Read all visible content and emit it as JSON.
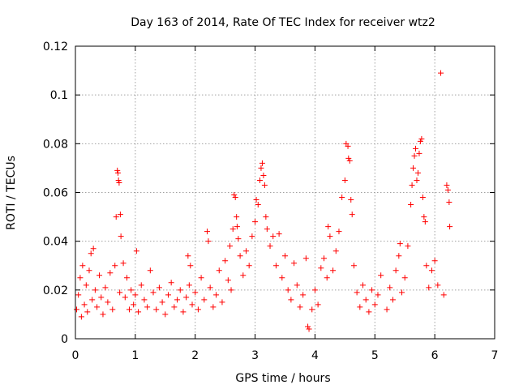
{
  "chart_data": {
    "type": "scatter",
    "title": "Day 163 of 2014, Rate Of TEC Index for receiver wtz2",
    "xlabel": "GPS time / hours",
    "ylabel": "ROTI / TECUs",
    "xlim": [
      0,
      7
    ],
    "ylim": [
      0,
      0.12
    ],
    "xticks": [
      0,
      1,
      2,
      3,
      4,
      5,
      6,
      7
    ],
    "yticks": [
      0,
      0.02,
      0.04,
      0.06,
      0.08,
      0.1,
      0.12
    ],
    "xtick_labels": [
      "0",
      "1",
      "2",
      "3",
      "4",
      "5",
      "6",
      "7"
    ],
    "ytick_labels": [
      "0",
      "0.02",
      "0.04",
      "0.06",
      "0.08",
      "0.1",
      "0.12"
    ],
    "grid": true,
    "marker": "+",
    "color": "#ff0000",
    "series": [
      {
        "name": "ROTI",
        "points": [
          [
            0.02,
            0.012
          ],
          [
            0.05,
            0.018
          ],
          [
            0.08,
            0.025
          ],
          [
            0.1,
            0.009
          ],
          [
            0.12,
            0.03
          ],
          [
            0.15,
            0.014
          ],
          [
            0.18,
            0.022
          ],
          [
            0.2,
            0.011
          ],
          [
            0.23,
            0.028
          ],
          [
            0.26,
            0.035
          ],
          [
            0.28,
            0.016
          ],
          [
            0.3,
            0.037
          ],
          [
            0.33,
            0.02
          ],
          [
            0.36,
            0.013
          ],
          [
            0.4,
            0.026
          ],
          [
            0.43,
            0.017
          ],
          [
            0.46,
            0.01
          ],
          [
            0.5,
            0.021
          ],
          [
            0.54,
            0.015
          ],
          [
            0.58,
            0.027
          ],
          [
            0.62,
            0.012
          ],
          [
            0.66,
            0.03
          ],
          [
            0.7,
            0.069
          ],
          [
            0.71,
            0.068
          ],
          [
            0.72,
            0.065
          ],
          [
            0.73,
            0.064
          ],
          [
            0.74,
            0.019
          ],
          [
            0.68,
            0.05
          ],
          [
            0.75,
            0.051
          ],
          [
            0.76,
            0.042
          ],
          [
            0.8,
            0.031
          ],
          [
            0.83,
            0.017
          ],
          [
            0.86,
            0.025
          ],
          [
            0.9,
            0.012
          ],
          [
            0.93,
            0.02
          ],
          [
            0.97,
            0.014
          ],
          [
            1.0,
            0.018
          ],
          [
            1.02,
            0.036
          ],
          [
            1.05,
            0.011
          ],
          [
            1.1,
            0.022
          ],
          [
            1.15,
            0.016
          ],
          [
            1.2,
            0.013
          ],
          [
            1.25,
            0.028
          ],
          [
            1.3,
            0.019
          ],
          [
            1.35,
            0.012
          ],
          [
            1.4,
            0.021
          ],
          [
            1.45,
            0.015
          ],
          [
            1.5,
            0.01
          ],
          [
            1.55,
            0.018
          ],
          [
            1.6,
            0.023
          ],
          [
            1.65,
            0.013
          ],
          [
            1.7,
            0.016
          ],
          [
            1.75,
            0.02
          ],
          [
            1.8,
            0.011
          ],
          [
            1.85,
            0.017
          ],
          [
            1.9,
            0.022
          ],
          [
            1.95,
            0.014
          ],
          [
            1.88,
            0.034
          ],
          [
            1.92,
            0.03
          ],
          [
            2.0,
            0.019
          ],
          [
            2.05,
            0.012
          ],
          [
            2.1,
            0.025
          ],
          [
            2.15,
            0.016
          ],
          [
            2.2,
            0.044
          ],
          [
            2.22,
            0.04
          ],
          [
            2.25,
            0.021
          ],
          [
            2.3,
            0.013
          ],
          [
            2.35,
            0.018
          ],
          [
            2.4,
            0.028
          ],
          [
            2.45,
            0.015
          ],
          [
            2.5,
            0.032
          ],
          [
            2.55,
            0.024
          ],
          [
            2.58,
            0.038
          ],
          [
            2.6,
            0.02
          ],
          [
            2.63,
            0.045
          ],
          [
            2.65,
            0.059
          ],
          [
            2.67,
            0.058
          ],
          [
            2.69,
            0.05
          ],
          [
            2.7,
            0.046
          ],
          [
            2.72,
            0.041
          ],
          [
            2.75,
            0.034
          ],
          [
            2.8,
            0.026
          ],
          [
            2.85,
            0.036
          ],
          [
            2.9,
            0.03
          ],
          [
            2.95,
            0.042
          ],
          [
            3.0,
            0.048
          ],
          [
            3.02,
            0.057
          ],
          [
            3.05,
            0.055
          ],
          [
            3.08,
            0.065
          ],
          [
            3.1,
            0.07
          ],
          [
            3.12,
            0.072
          ],
          [
            3.14,
            0.067
          ],
          [
            3.16,
            0.063
          ],
          [
            3.18,
            0.05
          ],
          [
            3.2,
            0.045
          ],
          [
            3.25,
            0.038
          ],
          [
            3.3,
            0.042
          ],
          [
            3.35,
            0.03
          ],
          [
            3.4,
            0.043
          ],
          [
            3.45,
            0.025
          ],
          [
            3.5,
            0.034
          ],
          [
            3.55,
            0.02
          ],
          [
            3.6,
            0.016
          ],
          [
            3.65,
            0.031
          ],
          [
            3.7,
            0.022
          ],
          [
            3.75,
            0.013
          ],
          [
            3.8,
            0.018
          ],
          [
            3.85,
            0.033
          ],
          [
            3.88,
            0.005
          ],
          [
            3.9,
            0.004
          ],
          [
            3.95,
            0.012
          ],
          [
            4.0,
            0.02
          ],
          [
            4.05,
            0.014
          ],
          [
            4.1,
            0.029
          ],
          [
            4.15,
            0.033
          ],
          [
            4.2,
            0.025
          ],
          [
            4.22,
            0.046
          ],
          [
            4.25,
            0.042
          ],
          [
            4.3,
            0.028
          ],
          [
            4.35,
            0.036
          ],
          [
            4.4,
            0.044
          ],
          [
            4.45,
            0.058
          ],
          [
            4.5,
            0.065
          ],
          [
            4.52,
            0.08
          ],
          [
            4.55,
            0.079
          ],
          [
            4.56,
            0.074
          ],
          [
            4.58,
            0.073
          ],
          [
            4.6,
            0.057
          ],
          [
            4.62,
            0.051
          ],
          [
            4.65,
            0.03
          ],
          [
            4.7,
            0.019
          ],
          [
            4.75,
            0.013
          ],
          [
            4.8,
            0.022
          ],
          [
            4.85,
            0.016
          ],
          [
            4.9,
            0.011
          ],
          [
            4.95,
            0.02
          ],
          [
            5.0,
            0.014
          ],
          [
            5.05,
            0.018
          ],
          [
            5.1,
            0.026
          ],
          [
            5.2,
            0.012
          ],
          [
            5.25,
            0.021
          ],
          [
            5.3,
            0.016
          ],
          [
            5.35,
            0.028
          ],
          [
            5.4,
            0.034
          ],
          [
            5.42,
            0.039
          ],
          [
            5.45,
            0.019
          ],
          [
            5.5,
            0.025
          ],
          [
            5.55,
            0.038
          ],
          [
            5.6,
            0.055
          ],
          [
            5.62,
            0.063
          ],
          [
            5.64,
            0.07
          ],
          [
            5.66,
            0.075
          ],
          [
            5.68,
            0.078
          ],
          [
            5.7,
            0.065
          ],
          [
            5.72,
            0.068
          ],
          [
            5.74,
            0.076
          ],
          [
            5.76,
            0.081
          ],
          [
            5.78,
            0.082
          ],
          [
            5.8,
            0.058
          ],
          [
            5.82,
            0.05
          ],
          [
            5.84,
            0.048
          ],
          [
            5.86,
            0.03
          ],
          [
            5.9,
            0.021
          ],
          [
            5.95,
            0.028
          ],
          [
            6.0,
            0.032
          ],
          [
            6.05,
            0.022
          ],
          [
            6.1,
            0.109
          ],
          [
            6.15,
            0.018
          ],
          [
            6.2,
            0.063
          ],
          [
            6.22,
            0.061
          ],
          [
            6.24,
            0.056
          ],
          [
            6.25,
            0.046
          ]
        ]
      }
    ]
  }
}
